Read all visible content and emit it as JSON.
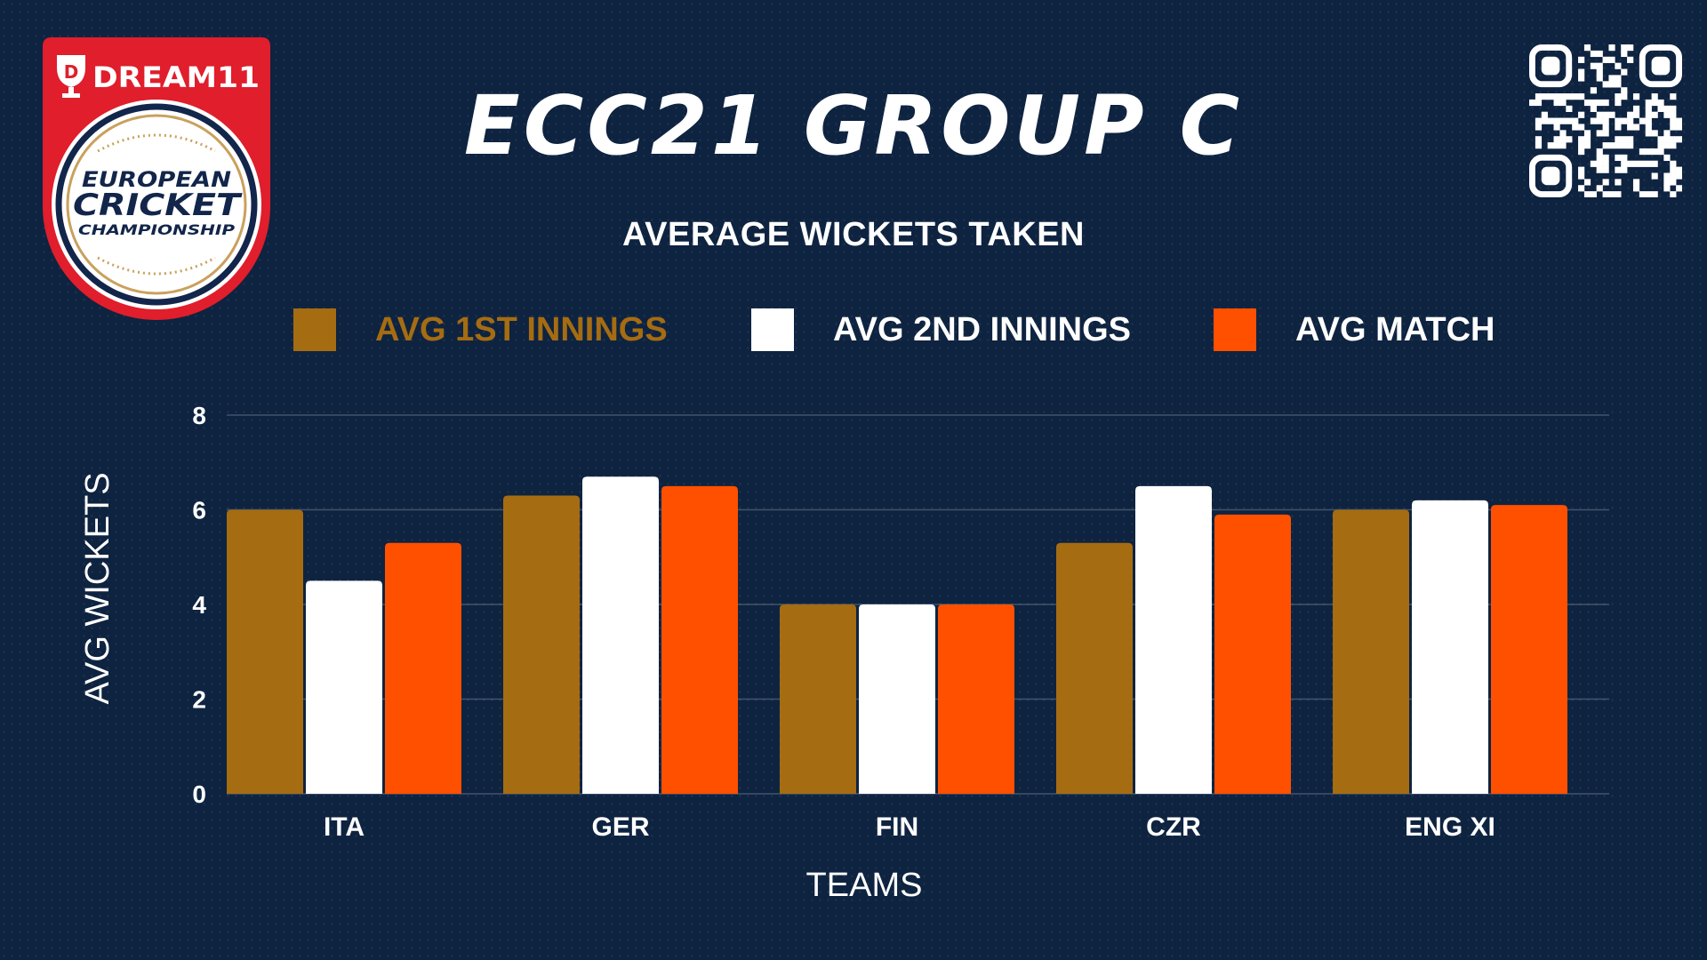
{
  "header": {
    "brand": "DREAM11",
    "logo_line1": "EUROPEAN",
    "logo_line2": "CRICKET",
    "logo_line3": "CHAMPIONSHIP",
    "title": "ECC21 GROUP C"
  },
  "colors": {
    "background": "#0e2340",
    "logo_red": "#e01e2c",
    "logo_gold": "#c9a15d",
    "logo_navy": "#12254a"
  },
  "chart_data": {
    "type": "bar",
    "title": "AVERAGE WICKETS TAKEN",
    "xlabel": "TEAMS",
    "ylabel": "AVG WICKETS",
    "ylim": [
      0,
      8
    ],
    "yticks": [
      0,
      2,
      4,
      6,
      8
    ],
    "grid": true,
    "legend_position": "top",
    "categories": [
      "ITA",
      "GER",
      "FIN",
      "CZR",
      "ENG XI"
    ],
    "series": [
      {
        "name": "AVG 1ST INNINGS",
        "color": "#a56c12",
        "values": [
          6.0,
          6.3,
          4.0,
          5.3,
          6.0
        ]
      },
      {
        "name": "AVG 2ND INNINGS",
        "color": "#ffffff",
        "values": [
          4.5,
          6.7,
          4.0,
          6.5,
          6.2
        ]
      },
      {
        "name": "AVG MATCH",
        "color": "#ff5000",
        "values": [
          5.3,
          6.5,
          4.0,
          5.9,
          6.1
        ]
      }
    ]
  }
}
